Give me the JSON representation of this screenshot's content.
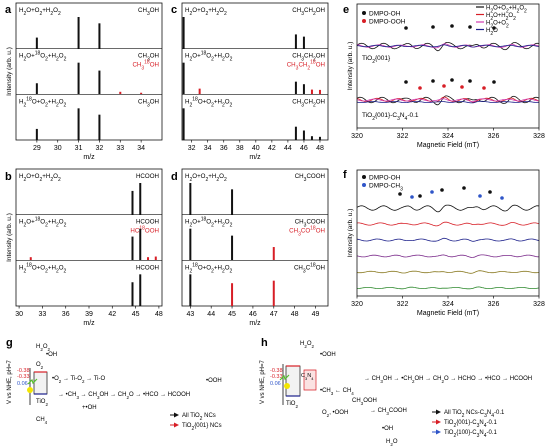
{
  "colors": {
    "black": "#111111",
    "red": "#d71e26",
    "navy": "#1b1f8a",
    "blue": "#2f55c8",
    "green": "#2f8a2f",
    "olive": "#8a7a22",
    "purple": "#7a2a8a",
    "magenta": "#d13bb0",
    "yellow": "#f3e600",
    "spark": "#56c02d"
  },
  "chart_data": [
    {
      "panel": "a",
      "type": "bar",
      "ylabel": "Intensity (arb. u.)",
      "xlabel": "m/z",
      "xlim": [
        28,
        35
      ],
      "xticks": [
        29,
        30,
        31,
        32,
        33,
        34
      ],
      "rows": [
        {
          "label": "H2O+O2+H2O2",
          "labelMarkup": "H<tspan baseline-shift='sub' font-size='5'>2</tspan>O+O<tspan baseline-shift='sub' font-size='5'>2</tspan>+H<tspan baseline-shift='sub' font-size='5'>2</tspan>O<tspan baseline-shift='sub' font-size='5'>2</tspan>",
          "product": "CH3OH",
          "productMarkup": "CH<tspan baseline-shift='sub' font-size='5'>3</tspan>OH",
          "peaks": [
            {
              "x": 29,
              "v": 0.35,
              "c": "black"
            },
            {
              "x": 31,
              "v": 1.0,
              "c": "black"
            },
            {
              "x": 32,
              "v": 0.8,
              "c": "black"
            }
          ]
        },
        {
          "label": "H2O+18O2+H2O2",
          "labelMarkup": "H<tspan baseline-shift='sub' font-size='5'>2</tspan>O+<tspan baseline-shift='super' font-size='5'>18</tspan>O<tspan baseline-shift='sub' font-size='5'>2</tspan>+H<tspan baseline-shift='sub' font-size='5'>2</tspan>O<tspan baseline-shift='sub' font-size='5'>2</tspan>",
          "product": "CH3OH",
          "productMarkup": "CH<tspan baseline-shift='sub' font-size='5'>3</tspan>OH",
          "product2": "CH3 18OH",
          "product2Markup": "CH<tspan baseline-shift='sub' font-size='5'>3</tspan><tspan baseline-shift='super' font-size='5'>18</tspan>OH",
          "peaks": [
            {
              "x": 29,
              "v": 0.35,
              "c": "black"
            },
            {
              "x": 31,
              "v": 1.0,
              "c": "black"
            },
            {
              "x": 32,
              "v": 0.75,
              "c": "black"
            },
            {
              "x": 33,
              "v": 0.08,
              "c": "red"
            },
            {
              "x": 34,
              "v": 0.05,
              "c": "red"
            }
          ]
        },
        {
          "label": "H2 18O+O2+H2O2",
          "labelMarkup": "H<tspan baseline-shift='sub' font-size='5'>2</tspan><tspan baseline-shift='super' font-size='5'>18</tspan>O+O<tspan baseline-shift='sub' font-size='5'>2</tspan>+H<tspan baseline-shift='sub' font-size='5'>2</tspan>O<tspan baseline-shift='sub' font-size='5'>2</tspan>",
          "product": "CH3OH",
          "productMarkup": "CH<tspan baseline-shift='sub' font-size='5'>3</tspan>OH",
          "peaks": [
            {
              "x": 29,
              "v": 0.35,
              "c": "black"
            },
            {
              "x": 31,
              "v": 1.0,
              "c": "black"
            },
            {
              "x": 32,
              "v": 0.8,
              "c": "black"
            }
          ]
        }
      ]
    },
    {
      "panel": "b",
      "type": "bar",
      "ylabel": "Intensity (arb. u.)",
      "xlabel": "m/z",
      "xlim": [
        29.6,
        48.4
      ],
      "xticks": [
        30,
        33,
        36,
        39,
        42,
        45,
        48
      ],
      "rows": [
        {
          "label": "H2O+O2+H2O2",
          "labelMarkup": "H<tspan baseline-shift='sub' font-size='5'>2</tspan>O+O<tspan baseline-shift='sub' font-size='5'>2</tspan>+H<tspan baseline-shift='sub' font-size='5'>2</tspan>O<tspan baseline-shift='sub' font-size='5'>2</tspan>",
          "product": "HCOOH",
          "productMarkup": "HCOOH",
          "peaks": [
            {
              "x": 44.6,
              "v": 0.75,
              "c": "black"
            },
            {
              "x": 45.6,
              "v": 1.0,
              "c": "black"
            }
          ]
        },
        {
          "label": "H2O+18O2+H2O2",
          "labelMarkup": "H<tspan baseline-shift='sub' font-size='5'>2</tspan>O+<tspan baseline-shift='super' font-size='5'>18</tspan>O<tspan baseline-shift='sub' font-size='5'>2</tspan>+H<tspan baseline-shift='sub' font-size='5'>2</tspan>O<tspan baseline-shift='sub' font-size='5'>2</tspan>",
          "product": "HCOOH",
          "productMarkup": "HCOOH",
          "product2": "HC18OOH",
          "product2Markup": "HC<tspan baseline-shift='super' font-size='5'>18</tspan>OOH",
          "peaks": [
            {
              "x": 31.5,
              "v": 0.1,
              "c": "red"
            },
            {
              "x": 44.6,
              "v": 0.75,
              "c": "black"
            },
            {
              "x": 45.6,
              "v": 1.0,
              "c": "black"
            },
            {
              "x": 46.6,
              "v": 0.1,
              "c": "red"
            },
            {
              "x": 47.6,
              "v": 0.12,
              "c": "red"
            }
          ]
        },
        {
          "label": "H2 18O+O2+H2O2",
          "labelMarkup": "H<tspan baseline-shift='sub' font-size='5'>2</tspan><tspan baseline-shift='super' font-size='5'>18</tspan>O+O<tspan baseline-shift='sub' font-size='5'>2</tspan>+H<tspan baseline-shift='sub' font-size='5'>2</tspan>O<tspan baseline-shift='sub' font-size='5'>2</tspan>",
          "product": "HCOOH",
          "productMarkup": "HCOOH",
          "peaks": [
            {
              "x": 44.6,
              "v": 0.75,
              "c": "black"
            },
            {
              "x": 45.6,
              "v": 1.0,
              "c": "black"
            }
          ]
        }
      ]
    },
    {
      "panel": "c",
      "type": "bar",
      "ylabel": "",
      "xlabel": "m/z",
      "xlim": [
        30.8,
        49.0
      ],
      "xticks": [
        32,
        34,
        36,
        38,
        40,
        42,
        44,
        46,
        48
      ],
      "rows": [
        {
          "label": "H2O+O2+H2O2",
          "labelMarkup": "H<tspan baseline-shift='sub' font-size='5'>2</tspan>O+O<tspan baseline-shift='sub' font-size='5'>2</tspan>+H<tspan baseline-shift='sub' font-size='5'>2</tspan>O<tspan baseline-shift='sub' font-size='5'>2</tspan>",
          "product": "CH3CH2OH",
          "productMarkup": "CH<tspan baseline-shift='sub' font-size='5'>3</tspan>CH<tspan baseline-shift='sub' font-size='5'>2</tspan>OH",
          "peaks": [
            {
              "x": 31,
              "v": 1.0,
              "c": "black"
            },
            {
              "x": 45,
              "v": 0.45,
              "c": "black"
            },
            {
              "x": 46,
              "v": 0.38,
              "c": "black"
            }
          ]
        },
        {
          "label": "H2O+18O2+H2O2",
          "labelMarkup": "H<tspan baseline-shift='sub' font-size='5'>2</tspan>O+<tspan baseline-shift='super' font-size='5'>18</tspan>O<tspan baseline-shift='sub' font-size='5'>2</tspan>+H<tspan baseline-shift='sub' font-size='5'>2</tspan>O<tspan baseline-shift='sub' font-size='5'>2</tspan>",
          "product": "CH3CH2OH",
          "productMarkup": "CH<tspan baseline-shift='sub' font-size='5'>3</tspan>CH<tspan baseline-shift='sub' font-size='5'>2</tspan>OH",
          "product2": "CH3CH2 18OH",
          "product2Markup": "CH<tspan baseline-shift='sub' font-size='5'>3</tspan>CH<tspan baseline-shift='sub' font-size='5'>2</tspan><tspan baseline-shift='super' font-size='5'>18</tspan>OH",
          "peaks": [
            {
              "x": 31,
              "v": 1.0,
              "c": "black"
            },
            {
              "x": 33,
              "v": 0.18,
              "c": "red"
            },
            {
              "x": 45,
              "v": 0.4,
              "c": "black"
            },
            {
              "x": 46,
              "v": 0.32,
              "c": "black"
            },
            {
              "x": 47,
              "v": 0.15,
              "c": "red"
            },
            {
              "x": 48,
              "v": 0.14,
              "c": "red"
            }
          ]
        },
        {
          "label": "H2 18O+O2+H2O2",
          "labelMarkup": "H<tspan baseline-shift='sub' font-size='5'>2</tspan><tspan baseline-shift='super' font-size='5'>18</tspan>O+O<tspan baseline-shift='sub' font-size='5'>2</tspan>+H<tspan baseline-shift='sub' font-size='5'>2</tspan>O<tspan baseline-shift='sub' font-size='5'>2</tspan>",
          "product": "CH3CH2OH",
          "productMarkup": "CH<tspan baseline-shift='sub' font-size='5'>3</tspan>CH<tspan baseline-shift='sub' font-size='5'>2</tspan>OH",
          "peaks": [
            {
              "x": 31,
              "v": 1.0,
              "c": "black"
            },
            {
              "x": 45,
              "v": 0.42,
              "c": "black"
            },
            {
              "x": 46,
              "v": 0.3,
              "c": "black"
            },
            {
              "x": 47,
              "v": 0.12,
              "c": "black"
            },
            {
              "x": 48,
              "v": 0.1,
              "c": "black"
            }
          ]
        }
      ]
    },
    {
      "panel": "d",
      "type": "bar",
      "ylabel": "",
      "xlabel": "m/z",
      "xlim": [
        42.6,
        49.6
      ],
      "xticks": [
        43,
        44,
        45,
        46,
        47,
        48,
        49
      ],
      "rows": [
        {
          "label": "H2O+O2+H2O2",
          "labelMarkup": "H<tspan baseline-shift='sub' font-size='5'>2</tspan>O+O<tspan baseline-shift='sub' font-size='5'>2</tspan>+H<tspan baseline-shift='sub' font-size='5'>2</tspan>O<tspan baseline-shift='sub' font-size='5'>2</tspan>",
          "product": "CH3COOH",
          "productMarkup": "CH<tspan baseline-shift='sub' font-size='5'>3</tspan>COOH",
          "peaks": [
            {
              "x": 43,
              "v": 1.0,
              "c": "black"
            },
            {
              "x": 45,
              "v": 0.8,
              "c": "black"
            }
          ]
        },
        {
          "label": "H2O+18O2+H2O2",
          "labelMarkup": "H<tspan baseline-shift='sub' font-size='5'>2</tspan>O+<tspan baseline-shift='super' font-size='5'>18</tspan>O<tspan baseline-shift='sub' font-size='5'>2</tspan>+H<tspan baseline-shift='sub' font-size='5'>2</tspan>O<tspan baseline-shift='sub' font-size='5'>2</tspan>",
          "product": "CH3COOH",
          "productMarkup": "CH<tspan baseline-shift='sub' font-size='5'>3</tspan>COOH",
          "product2": "CH3CO18OH",
          "product2Markup": "CH<tspan baseline-shift='sub' font-size='5'>3</tspan>CO<tspan baseline-shift='super' font-size='5'>18</tspan>OH",
          "peaks": [
            {
              "x": 43,
              "v": 1.0,
              "c": "black"
            },
            {
              "x": 45,
              "v": 0.78,
              "c": "black"
            },
            {
              "x": 47,
              "v": 0.42,
              "c": "red"
            }
          ]
        },
        {
          "label": "H2 18O+O2+H2O2",
          "labelMarkup": "H<tspan baseline-shift='sub' font-size='5'>2</tspan><tspan baseline-shift='super' font-size='5'>18</tspan>O+O<tspan baseline-shift='sub' font-size='5'>2</tspan>+H<tspan baseline-shift='sub' font-size='5'>2</tspan>O<tspan baseline-shift='sub' font-size='5'>2</tspan>",
          "product": "CH3C18OH",
          "productMarkup": "CH<tspan baseline-shift='sub' font-size='5'>3</tspan>C<tspan baseline-shift='super' font-size='5'>18</tspan>OH",
          "peaks": [
            {
              "x": 43,
              "v": 1.0,
              "c": "black"
            },
            {
              "x": 45,
              "v": 0.72,
              "c": "red"
            },
            {
              "x": 47,
              "v": 0.8,
              "c": "red"
            }
          ]
        }
      ]
    },
    {
      "panel": "e",
      "type": "line",
      "ylabel": "Intensity (arb. u.)",
      "xlabel": "Magnetic Field (mT)",
      "xlim": [
        320,
        328
      ],
      "xticks": [
        320,
        322,
        324,
        326,
        328
      ],
      "legend": [
        {
          "label": "H2O+O2+H2O2",
          "labelMarkup": "H<tspan baseline-shift='sub' font-size='5'>2</tspan>O+O<tspan baseline-shift='sub' font-size='5'>2</tspan>+H<tspan baseline-shift='sub' font-size='5'>2</tspan>O<tspan baseline-shift='sub' font-size='5'>2</tspan>",
          "c": "black"
        },
        {
          "label": "H2O+H2O2",
          "labelMarkup": "H<tspan baseline-shift='sub' font-size='5'>2</tspan>O+H<tspan baseline-shift='sub' font-size='5'>2</tspan>O<tspan baseline-shift='sub' font-size='5'>2</tspan>",
          "c": "red"
        },
        {
          "label": "H2O+O2",
          "labelMarkup": "H<tspan baseline-shift='sub' font-size='5'>2</tspan>O+O<tspan baseline-shift='sub' font-size='5'>2</tspan>",
          "c": "magenta"
        },
        {
          "label": "H2O",
          "labelMarkup": "H<tspan baseline-shift='sub' font-size='5'>2</tspan>O",
          "c": "navy"
        }
      ],
      "markers": [
        {
          "label": "DMPO-OH",
          "c": "black"
        },
        {
          "label": "DMPO-OOH",
          "c": "red"
        }
      ],
      "groups": [
        {
          "label": "TiO2{001}",
          "labelMarkup": "TiO<tspan baseline-shift='sub' font-size='5'>2</tspan>{001}"
        },
        {
          "label": "TiO2{001}-C3N4-0.1",
          "labelMarkup": "TiO<tspan baseline-shift='sub' font-size='5'>2</tspan>{001}-C<tspan baseline-shift='sub' font-size='5'>3</tspan>N<tspan baseline-shift='sub' font-size='5'>4</tspan>-0.1"
        }
      ]
    },
    {
      "panel": "f",
      "type": "line",
      "ylabel": "Intensity (arb. u.)",
      "xlabel": "Magnetic Field (mT)",
      "xlim": [
        320,
        328
      ],
      "xticks": [
        320,
        322,
        324,
        326,
        328
      ],
      "markers": [
        {
          "label": "DMPO-OH",
          "c": "black"
        },
        {
          "label": "DMPO-CH3",
          "labelMarkup": "DMPO-CH<tspan baseline-shift='sub' font-size='5'>3</tspan>",
          "c": "blue"
        }
      ],
      "traceColors": [
        "black",
        "red",
        "navy",
        "purple",
        "olive",
        "green"
      ]
    }
  ],
  "mechanism_g": {
    "panel": "g",
    "ylabel": "V vs NHE, pH=7",
    "potentials": [
      "-0.38",
      "-0.33",
      "0.06"
    ],
    "legend": [
      "All TiO2 NCs",
      "TiO2{001} NCs"
    ],
    "legendMarkup": [
      "All TiO<tspan baseline-shift='sub' font-size='5'>2</tspan> NCs",
      "TiO<tspan baseline-shift='sub' font-size='5'>2</tspan>{001} NCs"
    ]
  },
  "mechanism_h": {
    "panel": "h",
    "ylabel": "V vs NHE, pH=7",
    "potentials": [
      "-0.38",
      "-0.33",
      "0.06"
    ],
    "legend": [
      "All TiO2 NCs-C3N4-0.1",
      "TiO2{001}-C3N4-0.1",
      "TiO2{100}-C3N4-0.1"
    ],
    "legendMarkup": [
      "All TiO<tspan baseline-shift='sub' font-size='5'>2</tspan> NCs-C<tspan baseline-shift='sub' font-size='5'>3</tspan>N<tspan baseline-shift='sub' font-size='5'>4</tspan>-0.1",
      "TiO<tspan baseline-shift='sub' font-size='5'>2</tspan>{001}-C<tspan baseline-shift='sub' font-size='5'>3</tspan>N<tspan baseline-shift='sub' font-size='5'>4</tspan>-0.1",
      "TiO<tspan baseline-shift='sub' font-size='5'>2</tspan>{100}-C<tspan baseline-shift='sub' font-size='5'>3</tspan>N<tspan baseline-shift='sub' font-size='5'>4</tspan>-0.1"
    ]
  }
}
